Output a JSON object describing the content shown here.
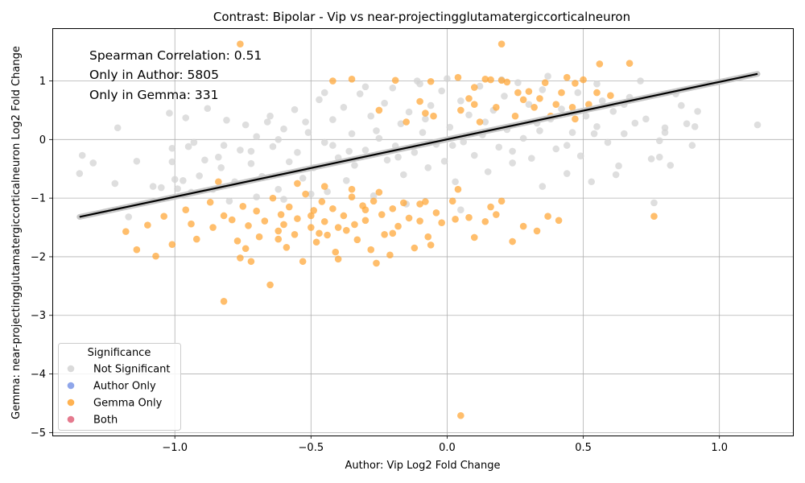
{
  "chart_data": {
    "type": "scatter",
    "title": "Contrast: Bipolar - Vip vs near-projectingglutamatergiccorticalneuron",
    "xlabel": "Author: Vip Log2 Fold Change",
    "ylabel": "Gemma: near-projectingglutamatergiccorticalneuron Log2 Fold Change",
    "xlim": [
      -1.45,
      1.27
    ],
    "ylim": [
      -5.05,
      1.9
    ],
    "x_ticks": [
      -1.0,
      -0.5,
      0.0,
      0.5,
      1.0
    ],
    "x_tick_labels": [
      "−1.0",
      "−0.5",
      "0.0",
      "0.5",
      "1.0"
    ],
    "y_ticks": [
      -5,
      -4,
      -3,
      -2,
      -1,
      0,
      1
    ],
    "y_tick_labels": [
      "−5",
      "−4",
      "−3",
      "−2",
      "−1",
      "0",
      "1"
    ],
    "grid": true,
    "annotations": [
      "Spearman Correlation: 0.51",
      "Only in Author: 5805",
      "Only in Gemma: 331"
    ],
    "legend": {
      "title": "Significance",
      "placement": "lower-left",
      "entries": [
        {
          "label": "Not Significant",
          "color": "#d3d3d3"
        },
        {
          "label": "Author Only",
          "color": "#7b97e6"
        },
        {
          "label": "Gemma Only",
          "color": "#ffa533"
        },
        {
          "label": "Both",
          "color": "#e0637a"
        }
      ]
    },
    "regression_line": {
      "x": [
        -1.35,
        1.14
      ],
      "y": [
        -1.32,
        1.12
      ],
      "color": "#000000"
    },
    "series": [
      {
        "name": "Not Significant",
        "color": "#d3d3d3",
        "points": [
          [
            -1.35,
            -0.58
          ],
          [
            -1.34,
            -0.27
          ],
          [
            -1.3,
            -0.4
          ],
          [
            -1.22,
            -0.75
          ],
          [
            -1.21,
            0.2
          ],
          [
            -1.17,
            -1.32
          ],
          [
            -1.14,
            -0.37
          ],
          [
            -1.05,
            -0.82
          ],
          [
            -1.02,
            0.45
          ],
          [
            -1.01,
            -0.15
          ],
          [
            -1.01,
            -0.38
          ],
          [
            -1.0,
            -0.68
          ],
          [
            -0.99,
            -0.84
          ],
          [
            -0.96,
            0.37
          ],
          [
            -0.95,
            -0.12
          ],
          [
            -0.94,
            -0.9
          ],
          [
            -0.93,
            -0.05
          ],
          [
            -0.91,
            -0.62
          ],
          [
            -0.89,
            -0.35
          ],
          [
            -0.88,
            0.53
          ],
          [
            -0.86,
            -0.85
          ],
          [
            -0.84,
            -0.3
          ],
          [
            -0.83,
            -0.48
          ],
          [
            -0.81,
            0.33
          ],
          [
            -0.78,
            -0.72
          ],
          [
            -0.76,
            -0.18
          ],
          [
            -0.74,
            0.25
          ],
          [
            -0.72,
            -0.41
          ],
          [
            -0.7,
            0.05
          ],
          [
            -0.68,
            -0.63
          ],
          [
            -0.66,
            0.3
          ],
          [
            -0.64,
            -0.12
          ],
          [
            -0.62,
            -0.85
          ],
          [
            -0.6,
            0.18
          ],
          [
            -0.58,
            -0.38
          ],
          [
            -0.56,
            0.51
          ],
          [
            -0.55,
            -0.22
          ],
          [
            -0.53,
            -0.66
          ],
          [
            -0.51,
            0.12
          ],
          [
            -0.49,
            -0.48
          ],
          [
            -0.47,
            0.68
          ],
          [
            -0.45,
            -0.05
          ],
          [
            -0.44,
            -0.89
          ],
          [
            -0.42,
            0.34
          ],
          [
            -0.4,
            -0.31
          ],
          [
            -0.38,
            0.55
          ],
          [
            -0.37,
            -0.7
          ],
          [
            -0.35,
            0.1
          ],
          [
            -0.34,
            -0.44
          ],
          [
            -0.32,
            0.78
          ],
          [
            -0.3,
            -0.18
          ],
          [
            -0.28,
            0.4
          ],
          [
            -0.27,
            -0.96
          ],
          [
            -0.25,
            0.02
          ],
          [
            -0.23,
            0.62
          ],
          [
            -0.22,
            -0.35
          ],
          [
            -0.2,
            0.88
          ],
          [
            -0.19,
            -0.11
          ],
          [
            -0.17,
            0.27
          ],
          [
            -0.16,
            -0.6
          ],
          [
            -0.14,
            0.47
          ],
          [
            -0.12,
            -0.22
          ],
          [
            -0.11,
            1.0
          ],
          [
            -0.09,
            0.12
          ],
          [
            -0.07,
            -0.48
          ],
          [
            -0.06,
            0.58
          ],
          [
            -0.04,
            -0.08
          ],
          [
            -0.02,
            0.83
          ],
          [
            -0.01,
            -0.37
          ],
          [
            0.01,
            0.21
          ],
          [
            0.03,
            -0.72
          ],
          [
            0.05,
            0.66
          ],
          [
            0.06,
            -0.04
          ],
          [
            0.08,
            0.42
          ],
          [
            0.1,
            -0.27
          ],
          [
            0.12,
            0.91
          ],
          [
            0.13,
            0.08
          ],
          [
            0.15,
            -0.55
          ],
          [
            0.17,
            0.5
          ],
          [
            0.19,
            -0.13
          ],
          [
            0.21,
            0.74
          ],
          [
            0.22,
            0.17
          ],
          [
            0.24,
            -0.4
          ],
          [
            0.26,
            0.97
          ],
          [
            0.28,
            0.02
          ],
          [
            0.3,
            0.6
          ],
          [
            0.31,
            -0.32
          ],
          [
            0.33,
            0.28
          ],
          [
            0.35,
            -0.8
          ],
          [
            0.37,
            1.08
          ],
          [
            0.38,
            0.35
          ],
          [
            0.4,
            -0.16
          ],
          [
            0.42,
            0.52
          ],
          [
            0.44,
            -0.58
          ],
          [
            0.46,
            0.12
          ],
          [
            0.48,
            0.8
          ],
          [
            0.49,
            -0.28
          ],
          [
            0.51,
            0.4
          ],
          [
            0.53,
            -0.72
          ],
          [
            0.55,
            0.22
          ],
          [
            0.57,
            0.66
          ],
          [
            0.59,
            -0.05
          ],
          [
            0.61,
            0.48
          ],
          [
            0.63,
            -0.45
          ],
          [
            0.65,
            0.1
          ],
          [
            0.67,
            0.72
          ],
          [
            0.69,
            0.28
          ],
          [
            0.71,
            1.0
          ],
          [
            0.73,
            0.35
          ],
          [
            0.75,
            -0.33
          ],
          [
            0.76,
            -1.08
          ],
          [
            0.78,
            -0.02
          ],
          [
            0.8,
            0.12
          ],
          [
            0.82,
            -0.44
          ],
          [
            0.84,
            0.78
          ],
          [
            0.86,
            0.58
          ],
          [
            0.88,
            0.27
          ],
          [
            0.9,
            -0.1
          ],
          [
            0.91,
            0.22
          ],
          [
            0.92,
            0.48
          ],
          [
            1.14,
            0.25
          ],
          [
            -0.8,
            -1.05
          ],
          [
            -0.7,
            -0.98
          ],
          [
            -0.6,
            -1.02
          ],
          [
            -0.5,
            -0.93
          ],
          [
            -0.15,
            -1.1
          ],
          [
            0.05,
            -1.2
          ],
          [
            -0.1,
            0.95
          ],
          [
            0.0,
            1.04
          ],
          [
            0.2,
            1.02
          ],
          [
            -0.65,
            0.4
          ],
          [
            -0.45,
            0.8
          ],
          [
            -0.3,
            0.9
          ],
          [
            0.35,
            0.85
          ],
          [
            0.55,
            0.95
          ],
          [
            0.65,
            0.6
          ],
          [
            -1.08,
            -0.8
          ],
          [
            -0.97,
            -0.7
          ],
          [
            0.78,
            -0.3
          ],
          [
            0.8,
            0.2
          ],
          [
            0.62,
            -0.6
          ],
          [
            -0.36,
            -0.2
          ],
          [
            -0.26,
            0.15
          ],
          [
            -0.18,
            -0.3
          ],
          [
            -0.08,
            0.35
          ],
          [
            0.02,
            -0.1
          ],
          [
            0.14,
            0.3
          ],
          [
            0.24,
            -0.2
          ],
          [
            0.34,
            0.15
          ],
          [
            0.44,
            -0.1
          ],
          [
            -0.52,
            0.3
          ],
          [
            -0.42,
            -0.1
          ],
          [
            -0.62,
            0.0
          ],
          [
            -0.72,
            -0.2
          ],
          [
            -0.82,
            -0.1
          ],
          [
            0.54,
            0.1
          ]
        ]
      },
      {
        "name": "Gemma Only",
        "color": "#ffa533",
        "points": [
          [
            -0.76,
            1.63
          ],
          [
            0.2,
            1.63
          ],
          [
            0.56,
            1.29
          ],
          [
            0.67,
            1.3
          ],
          [
            -0.42,
            1.0
          ],
          [
            -0.35,
            1.03
          ],
          [
            -0.19,
            1.01
          ],
          [
            -0.06,
            0.99
          ],
          [
            0.04,
            1.06
          ],
          [
            0.1,
            0.89
          ],
          [
            0.14,
            1.03
          ],
          [
            0.16,
            1.02
          ],
          [
            0.2,
            1.01
          ],
          [
            0.22,
            0.98
          ],
          [
            0.3,
            0.82
          ],
          [
            0.36,
            0.97
          ],
          [
            0.44,
            1.06
          ],
          [
            0.47,
            0.96
          ],
          [
            0.5,
            1.02
          ],
          [
            0.55,
            0.8
          ],
          [
            0.6,
            0.75
          ],
          [
            0.47,
            0.35
          ],
          [
            0.4,
            0.6
          ],
          [
            0.32,
            0.55
          ],
          [
            0.28,
            0.68
          ],
          [
            0.05,
            0.5
          ],
          [
            -0.05,
            0.4
          ],
          [
            -0.15,
            0.3
          ],
          [
            -0.25,
            0.5
          ],
          [
            0.12,
            0.3
          ],
          [
            0.25,
            0.4
          ],
          [
            0.38,
            0.4
          ],
          [
            0.52,
            0.6
          ],
          [
            0.08,
            0.7
          ],
          [
            -0.1,
            0.65
          ],
          [
            0.18,
            0.55
          ],
          [
            -1.18,
            -1.57
          ],
          [
            -1.14,
            -1.88
          ],
          [
            -1.1,
            -1.46
          ],
          [
            -1.07,
            -1.99
          ],
          [
            -1.04,
            -1.31
          ],
          [
            -1.01,
            -1.79
          ],
          [
            -0.96,
            -1.2
          ],
          [
            -0.94,
            -1.44
          ],
          [
            -0.92,
            -1.7
          ],
          [
            -0.87,
            -1.07
          ],
          [
            -0.86,
            -1.5
          ],
          [
            -0.84,
            -0.72
          ],
          [
            -0.82,
            -1.3
          ],
          [
            -0.82,
            -2.76
          ],
          [
            -0.79,
            -1.37
          ],
          [
            -0.77,
            -1.73
          ],
          [
            -0.76,
            -2.02
          ],
          [
            -0.75,
            -1.14
          ],
          [
            -0.74,
            -1.86
          ],
          [
            -0.73,
            -1.47
          ],
          [
            -0.72,
            -2.08
          ],
          [
            -0.7,
            -1.22
          ],
          [
            -0.69,
            -1.66
          ],
          [
            -0.67,
            -1.39
          ],
          [
            -0.65,
            -2.48
          ],
          [
            -0.64,
            -1.0
          ],
          [
            -0.62,
            -1.56
          ],
          [
            -0.61,
            -1.28
          ],
          [
            -0.59,
            -1.84
          ],
          [
            -0.58,
            -1.15
          ],
          [
            -0.56,
            -1.62
          ],
          [
            -0.55,
            -1.35
          ],
          [
            -0.53,
            -2.08
          ],
          [
            -0.52,
            -0.93
          ],
          [
            -0.5,
            -1.5
          ],
          [
            -0.49,
            -1.21
          ],
          [
            -0.48,
            -1.75
          ],
          [
            -0.46,
            -1.06
          ],
          [
            -0.45,
            -1.4
          ],
          [
            -0.44,
            -1.63
          ],
          [
            -0.42,
            -1.18
          ],
          [
            -0.41,
            -1.92
          ],
          [
            -0.4,
            -2.04
          ],
          [
            -0.38,
            -1.3
          ],
          [
            -0.37,
            -1.55
          ],
          [
            -0.35,
            -0.98
          ],
          [
            -0.34,
            -1.45
          ],
          [
            -0.33,
            -1.71
          ],
          [
            -0.31,
            -1.13
          ],
          [
            -0.3,
            -1.38
          ],
          [
            -0.28,
            -1.88
          ],
          [
            -0.27,
            -1.05
          ],
          [
            -0.26,
            -2.11
          ],
          [
            -0.24,
            -1.28
          ],
          [
            -0.23,
            -1.62
          ],
          [
            -0.21,
            -1.97
          ],
          [
            -0.2,
            -1.18
          ],
          [
            -0.18,
            -1.48
          ],
          [
            -0.16,
            -1.08
          ],
          [
            -0.14,
            -1.34
          ],
          [
            -0.12,
            -1.85
          ],
          [
            -0.1,
            -1.39
          ],
          [
            -0.08,
            -1.06
          ],
          [
            -0.07,
            -1.66
          ],
          [
            -0.06,
            -1.8
          ],
          [
            -0.04,
            -1.25
          ],
          [
            -0.02,
            -1.42
          ],
          [
            0.02,
            -1.05
          ],
          [
            0.03,
            -1.36
          ],
          [
            0.04,
            -0.85
          ],
          [
            0.08,
            -1.33
          ],
          [
            0.1,
            -1.67
          ],
          [
            0.14,
            -1.4
          ],
          [
            0.16,
            -1.15
          ],
          [
            0.18,
            -1.28
          ],
          [
            0.2,
            -1.05
          ],
          [
            0.24,
            -1.74
          ],
          [
            0.28,
            -1.48
          ],
          [
            0.33,
            -1.56
          ],
          [
            0.37,
            -1.31
          ],
          [
            0.41,
            -1.38
          ],
          [
            0.76,
            -1.31
          ],
          [
            0.05,
            -4.71
          ],
          [
            -0.55,
            -0.75
          ],
          [
            -0.45,
            -0.8
          ],
          [
            -0.35,
            -0.85
          ],
          [
            -0.25,
            -0.9
          ],
          [
            -0.6,
            -1.45
          ],
          [
            -0.4,
            -1.5
          ],
          [
            -0.2,
            -1.6
          ],
          [
            -0.5,
            -1.3
          ],
          [
            -0.3,
            -1.2
          ],
          [
            -0.1,
            -1.1
          ],
          [
            -0.62,
            -1.7
          ],
          [
            -0.47,
            -1.6
          ],
          [
            0.46,
            0.55
          ],
          [
            0.42,
            0.8
          ],
          [
            0.34,
            0.7
          ],
          [
            0.26,
            0.8
          ],
          [
            0.1,
            0.6
          ],
          [
            -0.08,
            0.45
          ]
        ]
      },
      {
        "name": "Author Only",
        "color": "#7b97e6",
        "points": []
      },
      {
        "name": "Both",
        "color": "#e0637a",
        "points": []
      }
    ]
  }
}
